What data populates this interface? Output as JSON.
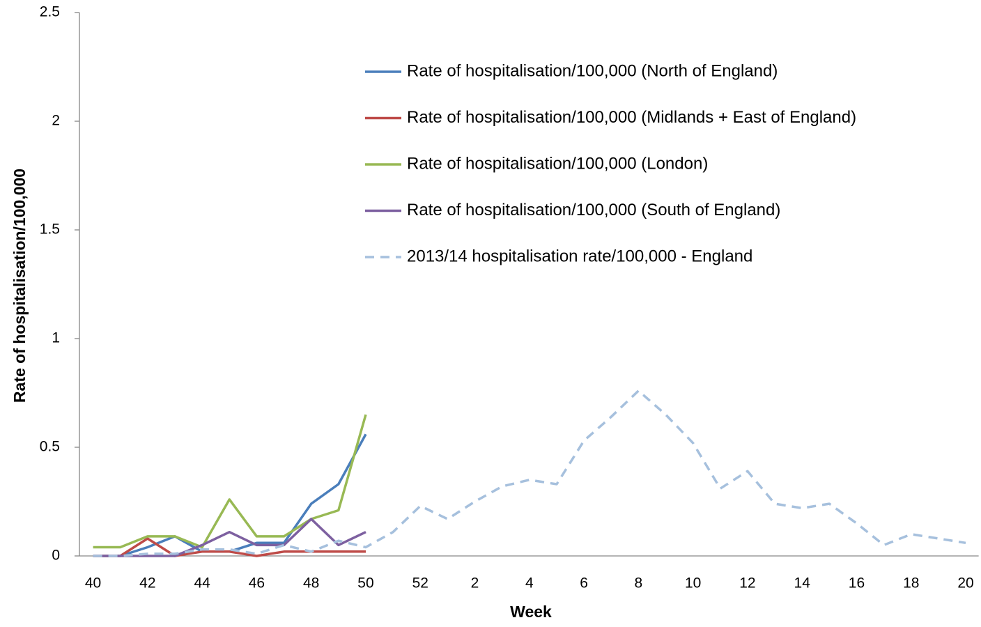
{
  "chart_data": {
    "type": "line",
    "x_label": "Week",
    "y_label": "Rate of hospitalisation/100,000",
    "categories": [
      "40",
      null,
      "42",
      null,
      "44",
      null,
      "46",
      null,
      "48",
      null,
      "50",
      null,
      "52",
      null,
      "2",
      null,
      "4",
      null,
      "6",
      null,
      "8",
      null,
      "10",
      null,
      "12",
      null,
      "14",
      null,
      "16",
      null,
      "18",
      null,
      "20"
    ],
    "series": [
      {
        "name": "Rate of hospitalisation/100,000 (North of England)",
        "color": "#4a7ebb",
        "dash": "solid",
        "values": [
          0,
          0,
          0.04,
          0.09,
          0.02,
          0.02,
          0.06,
          0.06,
          0.24,
          0.33,
          0.56,
          null,
          null,
          null,
          null,
          null,
          null,
          null,
          null,
          null,
          null,
          null,
          null,
          null,
          null,
          null,
          null,
          null,
          null,
          null,
          null,
          null,
          null
        ]
      },
      {
        "name": "Rate of hospitalisation/100,000 (Midlands + East of England)",
        "color": "#be4b48",
        "dash": "solid",
        "values": [
          0,
          0,
          0.08,
          0,
          0.02,
          0.02,
          0,
          0.02,
          0.02,
          0.02,
          0.02,
          null,
          null,
          null,
          null,
          null,
          null,
          null,
          null,
          null,
          null,
          null,
          null,
          null,
          null,
          null,
          null,
          null,
          null,
          null,
          null,
          null,
          null
        ]
      },
      {
        "name": "Rate of hospitalisation/100,000 (London)",
        "color": "#98b954",
        "dash": "solid",
        "values": [
          0.04,
          0.04,
          0.09,
          0.09,
          0.04,
          0.26,
          0.09,
          0.09,
          0.17,
          0.21,
          0.65,
          null,
          null,
          null,
          null,
          null,
          null,
          null,
          null,
          null,
          null,
          null,
          null,
          null,
          null,
          null,
          null,
          null,
          null,
          null,
          null,
          null,
          null
        ]
      },
      {
        "name": "Rate of hospitalisation/100,000 (South of England)",
        "color": "#7d60a0",
        "dash": "solid",
        "values": [
          0,
          0,
          0,
          0,
          0.05,
          0.11,
          0.05,
          0.05,
          0.17,
          0.05,
          0.11,
          null,
          null,
          null,
          null,
          null,
          null,
          null,
          null,
          null,
          null,
          null,
          null,
          null,
          null,
          null,
          null,
          null,
          null,
          null,
          null,
          null,
          null
        ]
      },
      {
        "name": "2013/14 hospitalisation rate/100,000 - England",
        "color": "#a6c0dd",
        "dash": "dashed",
        "values": [
          0,
          0,
          0.01,
          0.01,
          0.03,
          0.03,
          0.01,
          0.05,
          0.02,
          0.07,
          0.04,
          0.11,
          0.23,
          0.17,
          0.25,
          0.32,
          0.35,
          0.33,
          0.53,
          0.64,
          0.76,
          0.65,
          0.52,
          0.31,
          0.39,
          0.24,
          0.22,
          0.24,
          0.15,
          0.05,
          0.1,
          0.08,
          0.06
        ]
      }
    ],
    "ylim": [
      0,
      2.5
    ],
    "yticks": [
      0,
      0.5,
      1,
      1.5,
      2,
      2.5
    ],
    "grid": false,
    "legend": "upper right"
  }
}
